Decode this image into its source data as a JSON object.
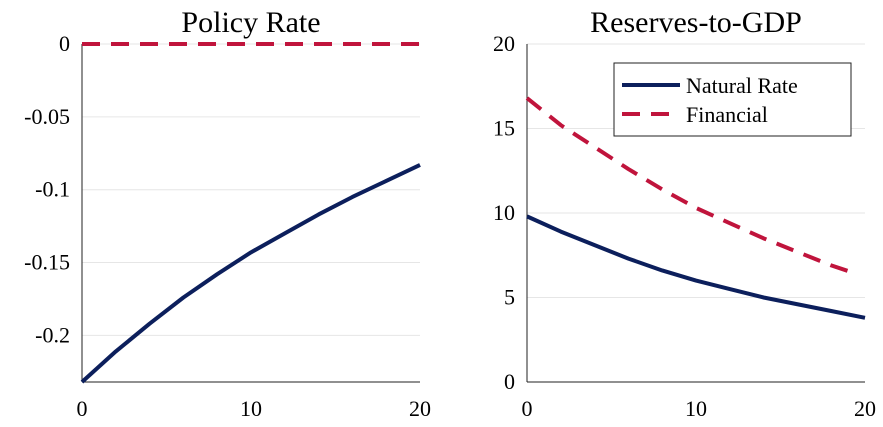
{
  "chart_data": [
    {
      "type": "line",
      "title": "Policy Rate",
      "xlabel": "",
      "ylabel": "",
      "xlim": [
        0,
        20
      ],
      "ylim": [
        -0.232,
        0
      ],
      "x_ticks": [
        0,
        10,
        20
      ],
      "x_tick_labels": [
        "0",
        "10",
        "20"
      ],
      "y_ticks": [
        0,
        -0.05,
        -0.1,
        -0.15,
        -0.2
      ],
      "y_tick_labels": [
        "0",
        "-0.05",
        "-0.1",
        "-0.15",
        "-0.2"
      ],
      "grid": true,
      "series": [
        {
          "name": "Natural Rate",
          "color": "#0c1f5c",
          "dash": "solid",
          "x": [
            0,
            2,
            4,
            6,
            8,
            10,
            12,
            14,
            16,
            18,
            20
          ],
          "y": [
            -0.232,
            -0.211,
            -0.192,
            -0.174,
            -0.158,
            -0.143,
            -0.13,
            -0.117,
            -0.105,
            -0.094,
            -0.083
          ]
        },
        {
          "name": "Financial",
          "color": "#c0143c",
          "dash": "dashed",
          "x": [
            0,
            2,
            4,
            6,
            8,
            10,
            12,
            14,
            16,
            18,
            20
          ],
          "y": [
            0,
            0,
            0,
            0,
            0,
            0,
            0,
            0,
            0,
            0,
            0
          ]
        }
      ]
    },
    {
      "type": "line",
      "title": "Reserves-to-GDP",
      "xlabel": "",
      "ylabel": "",
      "xlim": [
        0,
        20
      ],
      "ylim": [
        0,
        20
      ],
      "x_ticks": [
        0,
        10,
        20
      ],
      "x_tick_labels": [
        "0",
        "10",
        "20"
      ],
      "y_ticks": [
        0,
        5,
        10,
        15,
        20
      ],
      "y_tick_labels": [
        "0",
        "5",
        "10",
        "15",
        "20"
      ],
      "grid": true,
      "legend": {
        "placement": "top-right",
        "entries": [
          "Natural Rate",
          "Financial"
        ]
      },
      "series": [
        {
          "name": "Natural Rate",
          "color": "#0c1f5c",
          "dash": "solid",
          "x": [
            0,
            2,
            4,
            6,
            8,
            10,
            12,
            14,
            16,
            18,
            20
          ],
          "y": [
            9.8,
            8.9,
            8.1,
            7.3,
            6.6,
            6.0,
            5.5,
            5.0,
            4.6,
            4.2,
            3.8
          ]
        },
        {
          "name": "Financial",
          "color": "#c0143c",
          "dash": "dashed",
          "x": [
            0,
            2,
            4,
            6,
            8,
            10,
            12,
            14,
            16,
            18,
            19.2
          ],
          "y": [
            16.8,
            15.2,
            13.9,
            12.6,
            11.4,
            10.3,
            9.4,
            8.5,
            7.7,
            6.9,
            6.5
          ]
        }
      ]
    }
  ]
}
